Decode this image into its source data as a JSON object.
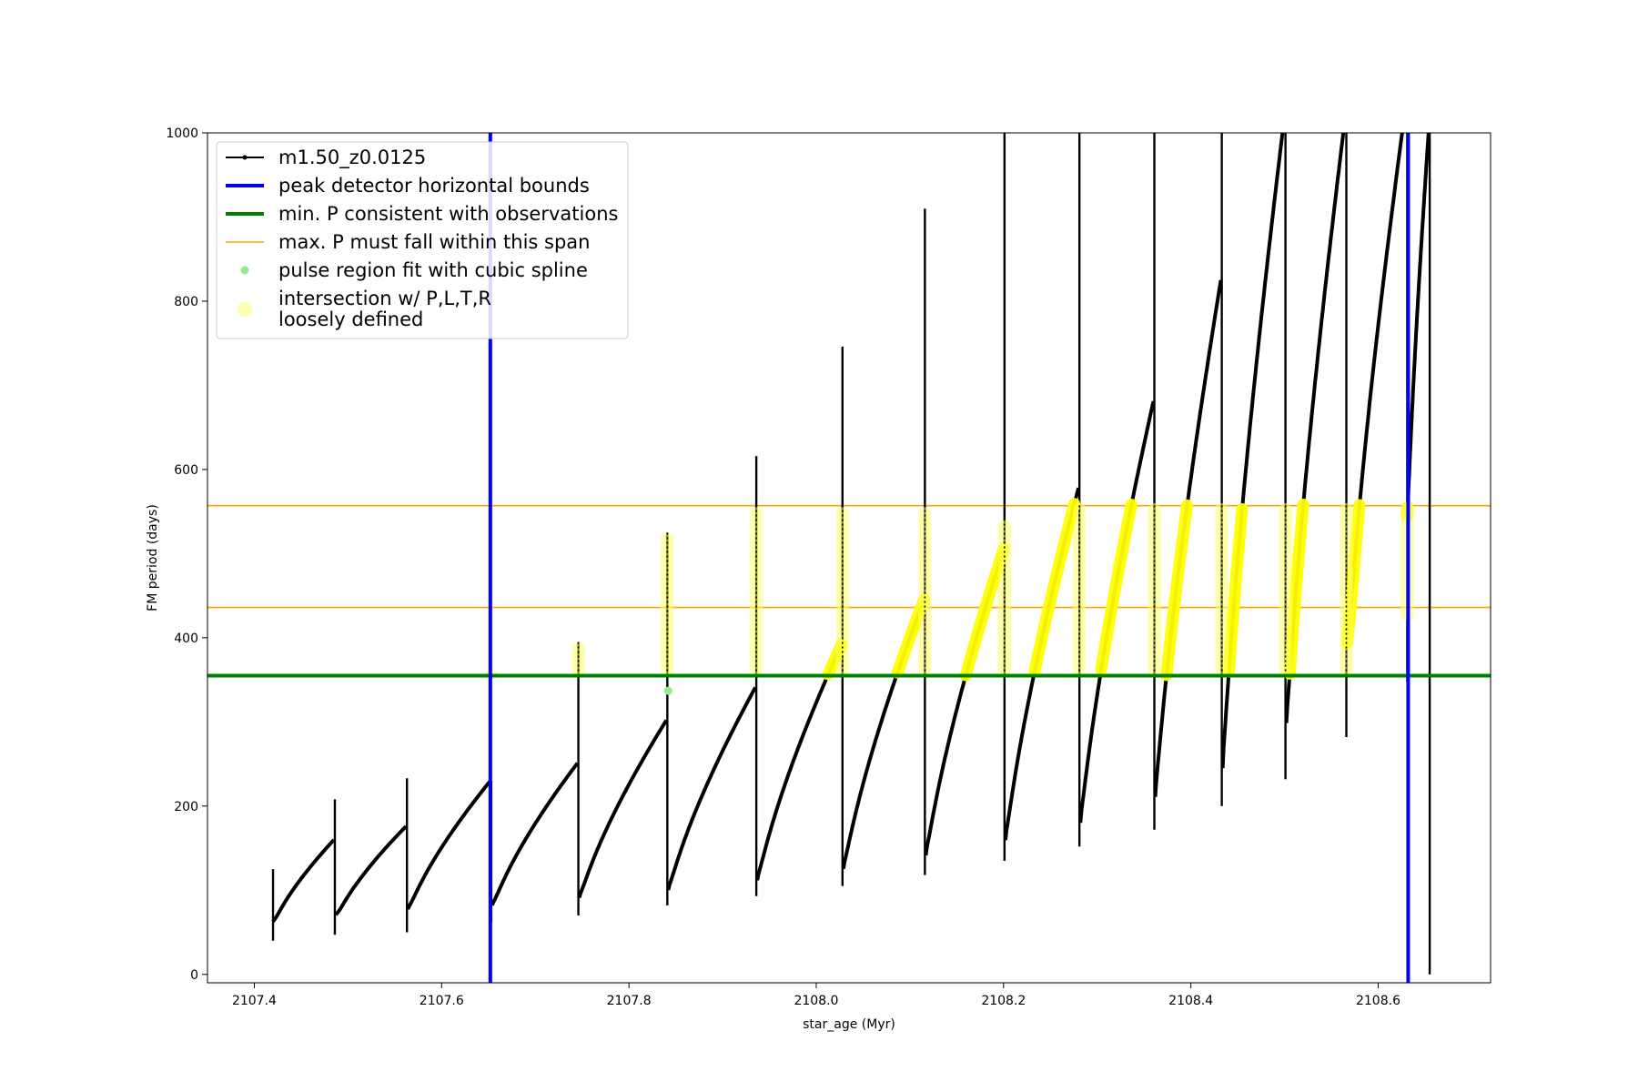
{
  "chart_data": {
    "type": "line",
    "xlabel": "star_age (Myr)",
    "ylabel": "FM period (days)",
    "xlim": [
      2107.35,
      2108.72
    ],
    "ylim": [
      -10,
      1000
    ],
    "xticks": [
      "2107.4",
      "2107.6",
      "2107.8",
      "2108.0",
      "2108.2",
      "2108.4",
      "2108.6"
    ],
    "yticks": [
      "0",
      "200",
      "400",
      "600",
      "800",
      "1000"
    ],
    "grid": false,
    "legend_placement": "top-left",
    "legend": [
      {
        "label": "m1.50_z0.0125",
        "style": "line-marker",
        "color": "#000000"
      },
      {
        "label": "peak detector horizontal bounds",
        "style": "line-thick",
        "color": "#0000ff"
      },
      {
        "label": "min. P consistent with observations",
        "style": "line-thick",
        "color": "#008000"
      },
      {
        "label": "max. P must fall within this span",
        "style": "line-thin",
        "color": "#ffa500"
      },
      {
        "label": "pulse region fit with cubic spline",
        "style": "dot",
        "color": "#90ee90"
      },
      {
        "label": "intersection w/ P,L,T,R",
        "label2": "loosely defined",
        "style": "big-dot",
        "color": "#ffffb0"
      }
    ],
    "colors": {
      "series": "#000000",
      "bounds": "#0000ff",
      "min_p": "#008000",
      "max_p": "#ffa500",
      "spline": "#90ee90",
      "intersection": "#ffff66",
      "intersection_highlight": "#ffff00"
    },
    "vlines": [
      2107.652,
      2108.632
    ],
    "min_p": 355,
    "max_p_span": [
      436,
      557
    ],
    "cycles": [
      {
        "start": 2107.42,
        "end": 2107.485,
        "min": 55,
        "peak": 160
      },
      {
        "start": 2107.487,
        "end": 2107.562,
        "min": 62,
        "peak": 176
      },
      {
        "start": 2107.564,
        "end": 2107.652,
        "min": 68,
        "peak": 230
      },
      {
        "start": 2107.654,
        "end": 2107.745,
        "min": 72,
        "peak": 251
      },
      {
        "start": 2107.747,
        "end": 2107.84,
        "min": 80,
        "peak": 302
      },
      {
        "start": 2107.842,
        "end": 2107.935,
        "min": 88,
        "peak": 341
      },
      {
        "start": 2107.937,
        "end": 2108.027,
        "min": 98,
        "peak": 392
      },
      {
        "start": 2108.029,
        "end": 2108.115,
        "min": 110,
        "peak": 445
      },
      {
        "start": 2108.117,
        "end": 2108.2,
        "min": 124,
        "peak": 505
      },
      {
        "start": 2108.202,
        "end": 2108.28,
        "min": 140,
        "peak": 578
      },
      {
        "start": 2108.282,
        "end": 2108.36,
        "min": 158,
        "peak": 681
      },
      {
        "start": 2108.362,
        "end": 2108.432,
        "min": 185,
        "peak": 825
      },
      {
        "start": 2108.434,
        "end": 2108.5,
        "min": 215,
        "peak": 1020
      },
      {
        "start": 2108.502,
        "end": 2108.565,
        "min": 262,
        "peak": 1020
      },
      {
        "start": 2108.567,
        "end": 2108.628,
        "min": 345,
        "peak": 1020
      },
      {
        "start": 2108.63,
        "end": 2108.655,
        "min": 480,
        "peak": 1020
      }
    ],
    "spikes": [
      {
        "x": 2107.42,
        "y": 125,
        "low": 40
      },
      {
        "x": 2107.486,
        "y": 208,
        "low": 47
      },
      {
        "x": 2107.563,
        "y": 233,
        "low": 50
      },
      {
        "x": 2107.653,
        "y": 230,
        "low": 62
      },
      {
        "x": 2107.746,
        "y": 395,
        "low": 70
      },
      {
        "x": 2107.841,
        "y": 525,
        "low": 82
      },
      {
        "x": 2107.936,
        "y": 616,
        "low": 93
      },
      {
        "x": 2108.028,
        "y": 746,
        "low": 105
      },
      {
        "x": 2108.116,
        "y": 910,
        "low": 118
      },
      {
        "x": 2108.201,
        "y": 1000,
        "low": 135
      },
      {
        "x": 2108.281,
        "y": 1000,
        "low": 152
      },
      {
        "x": 2108.361,
        "y": 1000,
        "low": 172
      },
      {
        "x": 2108.433,
        "y": 1000,
        "low": 200
      },
      {
        "x": 2108.501,
        "y": 1000,
        "low": 232
      },
      {
        "x": 2108.566,
        "y": 1000,
        "low": 282
      },
      {
        "x": 2108.631,
        "y": 1000,
        "low": 348
      },
      {
        "x": 2108.655,
        "y": 1000,
        "low": 0
      }
    ],
    "yellow_columns": [
      {
        "x": 2107.653,
        "ylo": 350,
        "yhi": 362
      },
      {
        "x": 2107.746,
        "ylo": 355,
        "yhi": 395
      },
      {
        "x": 2107.841,
        "ylo": 355,
        "yhi": 525
      },
      {
        "x": 2107.936,
        "ylo": 355,
        "yhi": 555
      },
      {
        "x": 2108.028,
        "ylo": 355,
        "yhi": 555
      },
      {
        "x": 2108.116,
        "ylo": 355,
        "yhi": 555
      },
      {
        "x": 2108.201,
        "ylo": 355,
        "yhi": 540
      },
      {
        "x": 2108.281,
        "ylo": 355,
        "yhi": 560
      },
      {
        "x": 2108.361,
        "ylo": 355,
        "yhi": 560
      },
      {
        "x": 2108.433,
        "ylo": 355,
        "yhi": 560
      },
      {
        "x": 2108.501,
        "ylo": 355,
        "yhi": 560
      },
      {
        "x": 2108.566,
        "ylo": 355,
        "yhi": 560
      },
      {
        "x": 2108.631,
        "ylo": 420,
        "yhi": 560
      }
    ],
    "green_dots": [
      {
        "x": 2107.842,
        "y": 337
      }
    ]
  }
}
